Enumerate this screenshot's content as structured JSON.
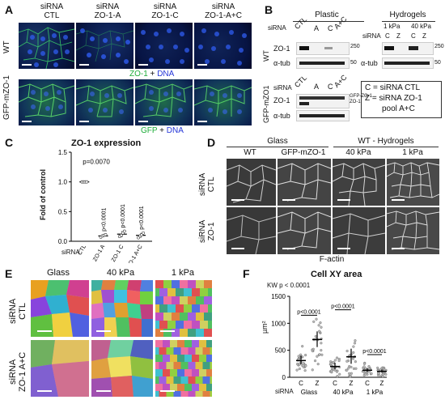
{
  "panels": {
    "A": "A",
    "B": "B",
    "C": "C",
    "D": "D",
    "E": "E",
    "F": "F"
  },
  "a": {
    "col_headers": [
      "siRNA\nCTL",
      "siRNA\nZO-1-A",
      "siRNA\nZO-1-C",
      "siRNA\nZO-1-A+C"
    ],
    "row_labels": [
      "WT",
      "GFP-mZO-1"
    ],
    "legend1": {
      "a": "ZO-1",
      "b": " + ",
      "c": "DNA"
    },
    "legend2": {
      "a": "GFP",
      "b": " + ",
      "c": "DNA"
    }
  },
  "b": {
    "plastic": "Plastic",
    "hydrogels": "Hydrogels",
    "wt": "WT",
    "gfp": "GFP-mZO1",
    "siRNA": "siRNA",
    "lanes": [
      "CTL",
      "A",
      "C",
      "A+C"
    ],
    "zo1": "ZO-1",
    "atub": "α-tub",
    "m250": "250",
    "m50": "50",
    "gfpzo1": "GFP-ZO-1",
    "zo1b": "ZO-1",
    "hyd_stiff": [
      "1 kPa",
      "40 kPa"
    ],
    "hyd_lanes": [
      "C",
      "Z",
      "C",
      "Z"
    ],
    "key1": "C = siRNA CTL",
    "key2": "Z = siRNA ZO-1",
    "key3": "pool A+C",
    "colors": {
      "band": "#111111",
      "blot": "#f2f2f2"
    }
  },
  "c": {
    "chart_data": {
      "type": "scatter",
      "title": "ZO-1 expression",
      "ylabel": "Fold of control",
      "xlabel": "siRNA",
      "categories": [
        "CTL",
        "ZO-1 A",
        "ZO-1 C",
        "ZO-1 A+C"
      ],
      "means": [
        1.0,
        0.09,
        0.12,
        0.1
      ],
      "sd": [
        0.01,
        0.02,
        0.05,
        0.04
      ],
      "points": [
        [
          1.0,
          1.0,
          1.0,
          1.0
        ],
        [
          0.07,
          0.09,
          0.1,
          0.11
        ],
        [
          0.08,
          0.1,
          0.14,
          0.17
        ],
        [
          0.06,
          0.09,
          0.11,
          0.14
        ]
      ],
      "ylim": [
        0,
        1.5
      ],
      "yticks": [
        "0.0",
        "0.5",
        "1.0",
        "1.5"
      ],
      "annotations": [
        "p=0.0070",
        "p<0.0001",
        "p<0.0001",
        "p<0.0001"
      ]
    }
  },
  "d": {
    "glass": "Glass",
    "wth": "WT - Hydrogels",
    "cols": [
      "WT",
      "GFP-mZO-1",
      "40 kPa",
      "1 kPa"
    ],
    "rows": [
      "siRNA\nCTL",
      "siRNA\nZO-1"
    ],
    "xlabel": "F-actin"
  },
  "e": {
    "cols": [
      "Glass",
      "40 kPa",
      "1 kPa"
    ],
    "rows": [
      "siRNA\nCTL",
      "siRNA\nZO-1 A+C"
    ]
  },
  "f": {
    "chart_data": {
      "type": "scatter",
      "title": "Cell XY area",
      "ylabel": "µm²",
      "xlabel": "siRNA",
      "kw": "KW p < 0.0001",
      "categories": [
        "C",
        "Z",
        "C",
        "Z",
        "C",
        "Z"
      ],
      "groups": [
        "Glass",
        "40 kPa",
        "1 kPa"
      ],
      "medians": [
        310,
        700,
        200,
        380,
        130,
        110
      ],
      "iqr": [
        [
          240,
          400
        ],
        [
          560,
          850
        ],
        [
          150,
          270
        ],
        [
          250,
          530
        ],
        [
          100,
          170
        ],
        [
          85,
          140
        ]
      ],
      "ylim": [
        0,
        1500
      ],
      "yticks": [
        "0",
        "500",
        "1000",
        "1500"
      ],
      "annotations": [
        "p<0.0001",
        "p<0.0001",
        "p<0.0001"
      ]
    }
  }
}
